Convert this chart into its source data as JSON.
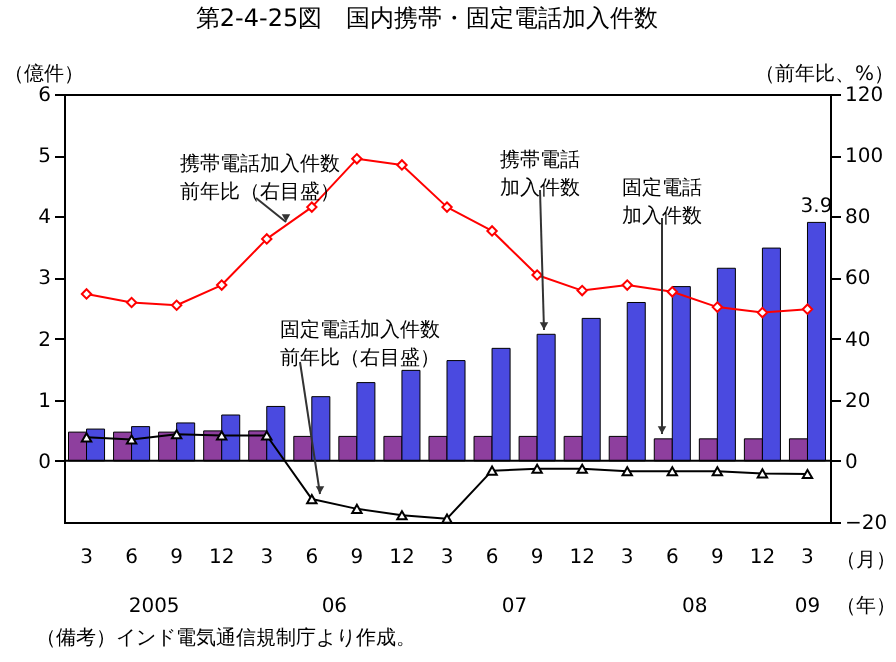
{
  "chart_data": {
    "type": "bar",
    "title": "第2-4-25図　国内携帯・固定電話加入件数",
    "ylabel": "（億件）",
    "y2label": "（前年比、%）",
    "categories": [
      "3",
      "6",
      "9",
      "12",
      "3",
      "6",
      "9",
      "12",
      "3",
      "6",
      "9",
      "12",
      "3",
      "6",
      "9",
      "12",
      "3"
    ],
    "series": [
      {
        "name": "固定電話加入件数",
        "color": "#8e3f9e",
        "values": [
          0.47,
          0.47,
          0.47,
          0.49,
          0.49,
          0.4,
          0.4,
          0.4,
          0.4,
          0.4,
          0.4,
          0.4,
          0.4,
          0.36,
          0.36,
          0.36,
          0.36
        ]
      },
      {
        "name": "携帯電話加入件数",
        "color": "#4a4ae0",
        "values": [
          0.52,
          0.56,
          0.62,
          0.75,
          0.89,
          1.05,
          1.28,
          1.48,
          1.64,
          1.84,
          2.07,
          2.33,
          2.59,
          2.85,
          3.15,
          3.48,
          3.9
        ],
        "value_labels": [
          null,
          null,
          null,
          null,
          null,
          null,
          null,
          null,
          null,
          null,
          null,
          null,
          null,
          null,
          null,
          null,
          "3.9"
        ]
      },
      {
        "name": "携帯電話加入件数前年比（右目盛）",
        "type": "line",
        "axis": "y2",
        "color": "#ff0000",
        "marker": "diamond",
        "values": [
          54.6,
          51.8,
          50.9,
          57.5,
          72.6,
          83,
          98.8,
          96.8,
          83,
          75.2,
          60.8,
          55.7,
          57.5,
          55.3,
          50.3,
          48.5,
          49.6
        ]
      },
      {
        "name": "固定電話加入件数前年比（右目盛）",
        "type": "line",
        "axis": "y2",
        "color": "#000000",
        "marker": "triangle",
        "values": [
          7.7,
          7.0,
          8.7,
          8.3,
          8.3,
          -12.5,
          -15.7,
          -17.8,
          -18.9,
          -3.2,
          -2.6,
          -2.6,
          -3.4,
          -3.4,
          -3.4,
          -4.1,
          -4.3
        ]
      }
    ],
    "ylim": [
      -1,
      6
    ],
    "yticks": [
      0,
      1,
      2,
      3,
      4,
      5,
      6
    ],
    "y2lim": [
      -20,
      120
    ],
    "y2ticks": [
      -20,
      0,
      20,
      40,
      60,
      80,
      100,
      120
    ],
    "ref_lines": [
      {
        "axis": "y",
        "value": 0,
        "color": "#000000"
      }
    ],
    "grid": false,
    "legend": false,
    "annotations": [
      "（月）",
      "（年）",
      "2005",
      "06",
      "07",
      "08",
      "09",
      "（備考）インド電気通信規制庁より作成。"
    ]
  }
}
